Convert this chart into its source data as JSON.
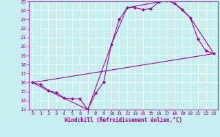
{
  "xlabel": "Windchill (Refroidissement éolien,°C)",
  "bg_color": "#c8eff0",
  "grid_color": "#ffffff",
  "line_color": "#990099",
  "xlim": [
    -0.5,
    23.5
  ],
  "ylim": [
    13,
    25
  ],
  "xticks": [
    0,
    1,
    2,
    3,
    4,
    5,
    6,
    7,
    8,
    9,
    10,
    11,
    12,
    13,
    14,
    15,
    16,
    17,
    18,
    19,
    20,
    21,
    22,
    23
  ],
  "yticks": [
    13,
    14,
    15,
    16,
    17,
    18,
    19,
    20,
    21,
    22,
    23,
    24,
    25
  ],
  "line1_x": [
    0,
    1,
    2,
    3,
    4,
    5,
    6,
    7,
    8,
    9,
    10,
    11,
    12,
    13,
    14,
    15,
    16,
    17,
    18,
    19,
    20,
    21,
    22,
    23
  ],
  "line1_y": [
    16.0,
    15.8,
    15.1,
    14.9,
    14.3,
    14.2,
    14.2,
    13.0,
    14.8,
    16.0,
    20.2,
    23.0,
    24.3,
    24.3,
    24.1,
    24.2,
    24.9,
    25.1,
    24.8,
    24.1,
    23.2,
    20.8,
    19.5,
    19.2
  ],
  "line2_x": [
    0,
    2,
    7,
    10,
    12,
    17,
    18,
    20,
    23
  ],
  "line2_y": [
    16.0,
    15.1,
    13.0,
    20.2,
    24.3,
    25.1,
    24.8,
    23.2,
    19.2
  ],
  "line3_x": [
    0,
    23
  ],
  "line3_y": [
    16.0,
    19.2
  ],
  "xlabel_fontsize": 5.5,
  "tick_fontsize": 5.0
}
